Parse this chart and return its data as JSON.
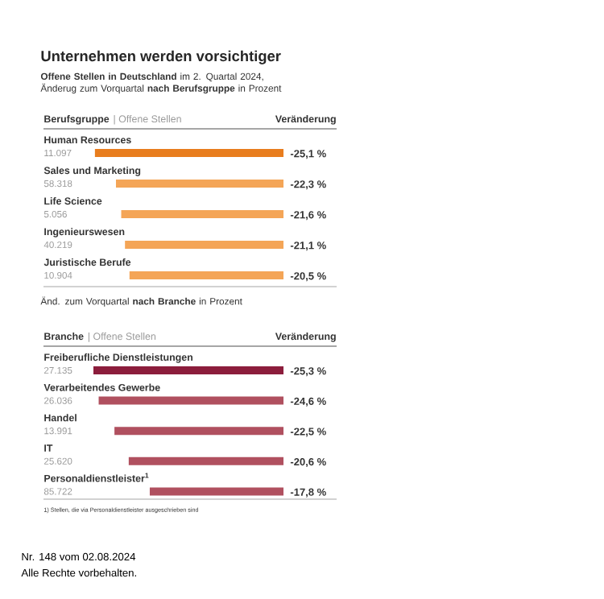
{
  "chart_data": [
    {
      "type": "bar",
      "orientation": "horizontal",
      "title": "Unternehmen werden vorsichtiger",
      "subtitle": "**Offene Stellen in Deutschland** im 2. Quartal 2024, Änderug zum Vorquartal **nach Berufsgruppe** in Prozent",
      "xlabel": "Veränderung",
      "ylabel": "Berufsgruppe",
      "categories": [
        "Human Resources",
        "Sales und Marketing",
        "Life Science",
        "Ingenieurswesen",
        "Juristische Berufe"
      ],
      "values": [
        -25.1,
        -22.3,
        -21.6,
        -21.1,
        -20.5
      ],
      "value_labels": [
        "-25,1 %",
        "-22,3 %",
        "-21,6 %",
        "-21,1 %",
        "-20,5 %"
      ],
      "colors": [
        "#e87d1e",
        "#f4a557",
        "#f4a557",
        "#f4a557",
        "#f4a557"
      ],
      "annotations": [
        "| Offene Stellen",
        "11.097",
        "58.318",
        "5.056",
        "40.219",
        "10.904"
      ]
    },
    {
      "type": "bar",
      "orientation": "horizontal",
      "subtitle": "Änd. zum Vorquartal **nach Branche** in Prozent",
      "xlabel": "Veränderung",
      "ylabel": "Branche",
      "categories": [
        "Freiberufliche Dienstleistungen",
        "Verarbeitendes Gewerbe",
        "Handel",
        "IT",
        "Personaldienstleister$^{1}$"
      ],
      "values": [
        -25.3,
        -24.6,
        -22.5,
        -20.6,
        -17.8
      ],
      "value_labels": [
        "-25,3 %",
        "-24,6 %",
        "-22,5 %",
        "-20,6 %",
        "-17,8 %"
      ],
      "colors": [
        "#8c1d3c",
        "#b0505f",
        "#b0505f",
        "#b0505f",
        "#b0505f"
      ],
      "annotations": [
        "| Offene Stellen",
        "27.135",
        "26.036",
        "13.991",
        "25.620",
        "85.722",
        "1) Stellen, die via Personaldienstleister ausgeschrieben sind",
        "Nr. 148 vom 02.08.2024",
        "Alle Rechte vorbehalten."
      ]
    }
  ]
}
